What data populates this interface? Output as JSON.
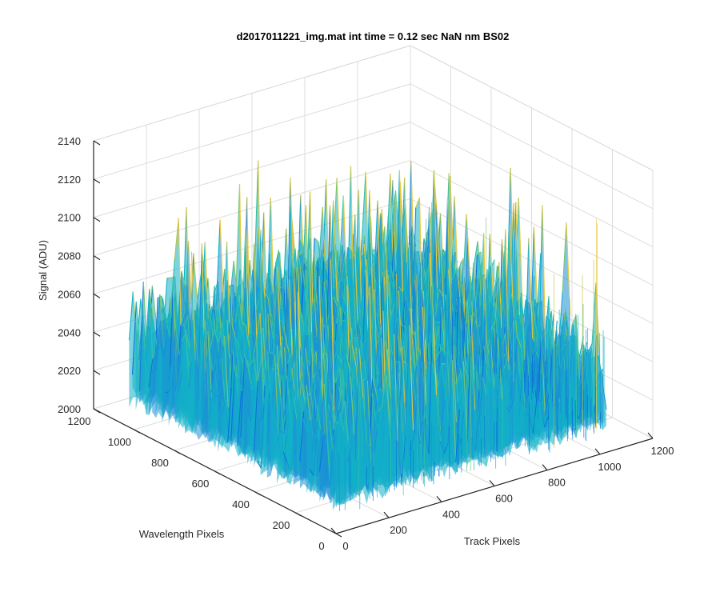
{
  "chart_data": {
    "type": "surface",
    "title": "d2017011221_img.mat int time = 0.12 sec  NaN nm BS02",
    "xlabel": "Track Pixels",
    "ylabel": "Wavelength Pixels",
    "zlabel": "Signal (ADU)",
    "x_ticks": [
      "0",
      "200",
      "400",
      "600",
      "800",
      "1000",
      "1200"
    ],
    "y_ticks": [
      "0",
      "200",
      "400",
      "600",
      "800",
      "1000",
      "1200"
    ],
    "z_ticks": [
      "2000",
      "2020",
      "2040",
      "2060",
      "2080",
      "2100",
      "2120",
      "2140"
    ],
    "xlim": [
      0,
      1200
    ],
    "ylim": [
      0,
      1200
    ],
    "zlim": [
      2000,
      2140
    ],
    "data_extent": {
      "x": [
        0,
        1024
      ],
      "y": [
        0,
        1024
      ]
    },
    "signal_range": [
      2010,
      2135
    ],
    "signal_typical": 2045,
    "colormap": "parula",
    "colors": [
      "#0a72d8",
      "#1c8fd6",
      "#12b0c8",
      "#38bfa4",
      "#7cc570",
      "#c4bf46",
      "#e8c83a"
    ],
    "grid": true
  }
}
